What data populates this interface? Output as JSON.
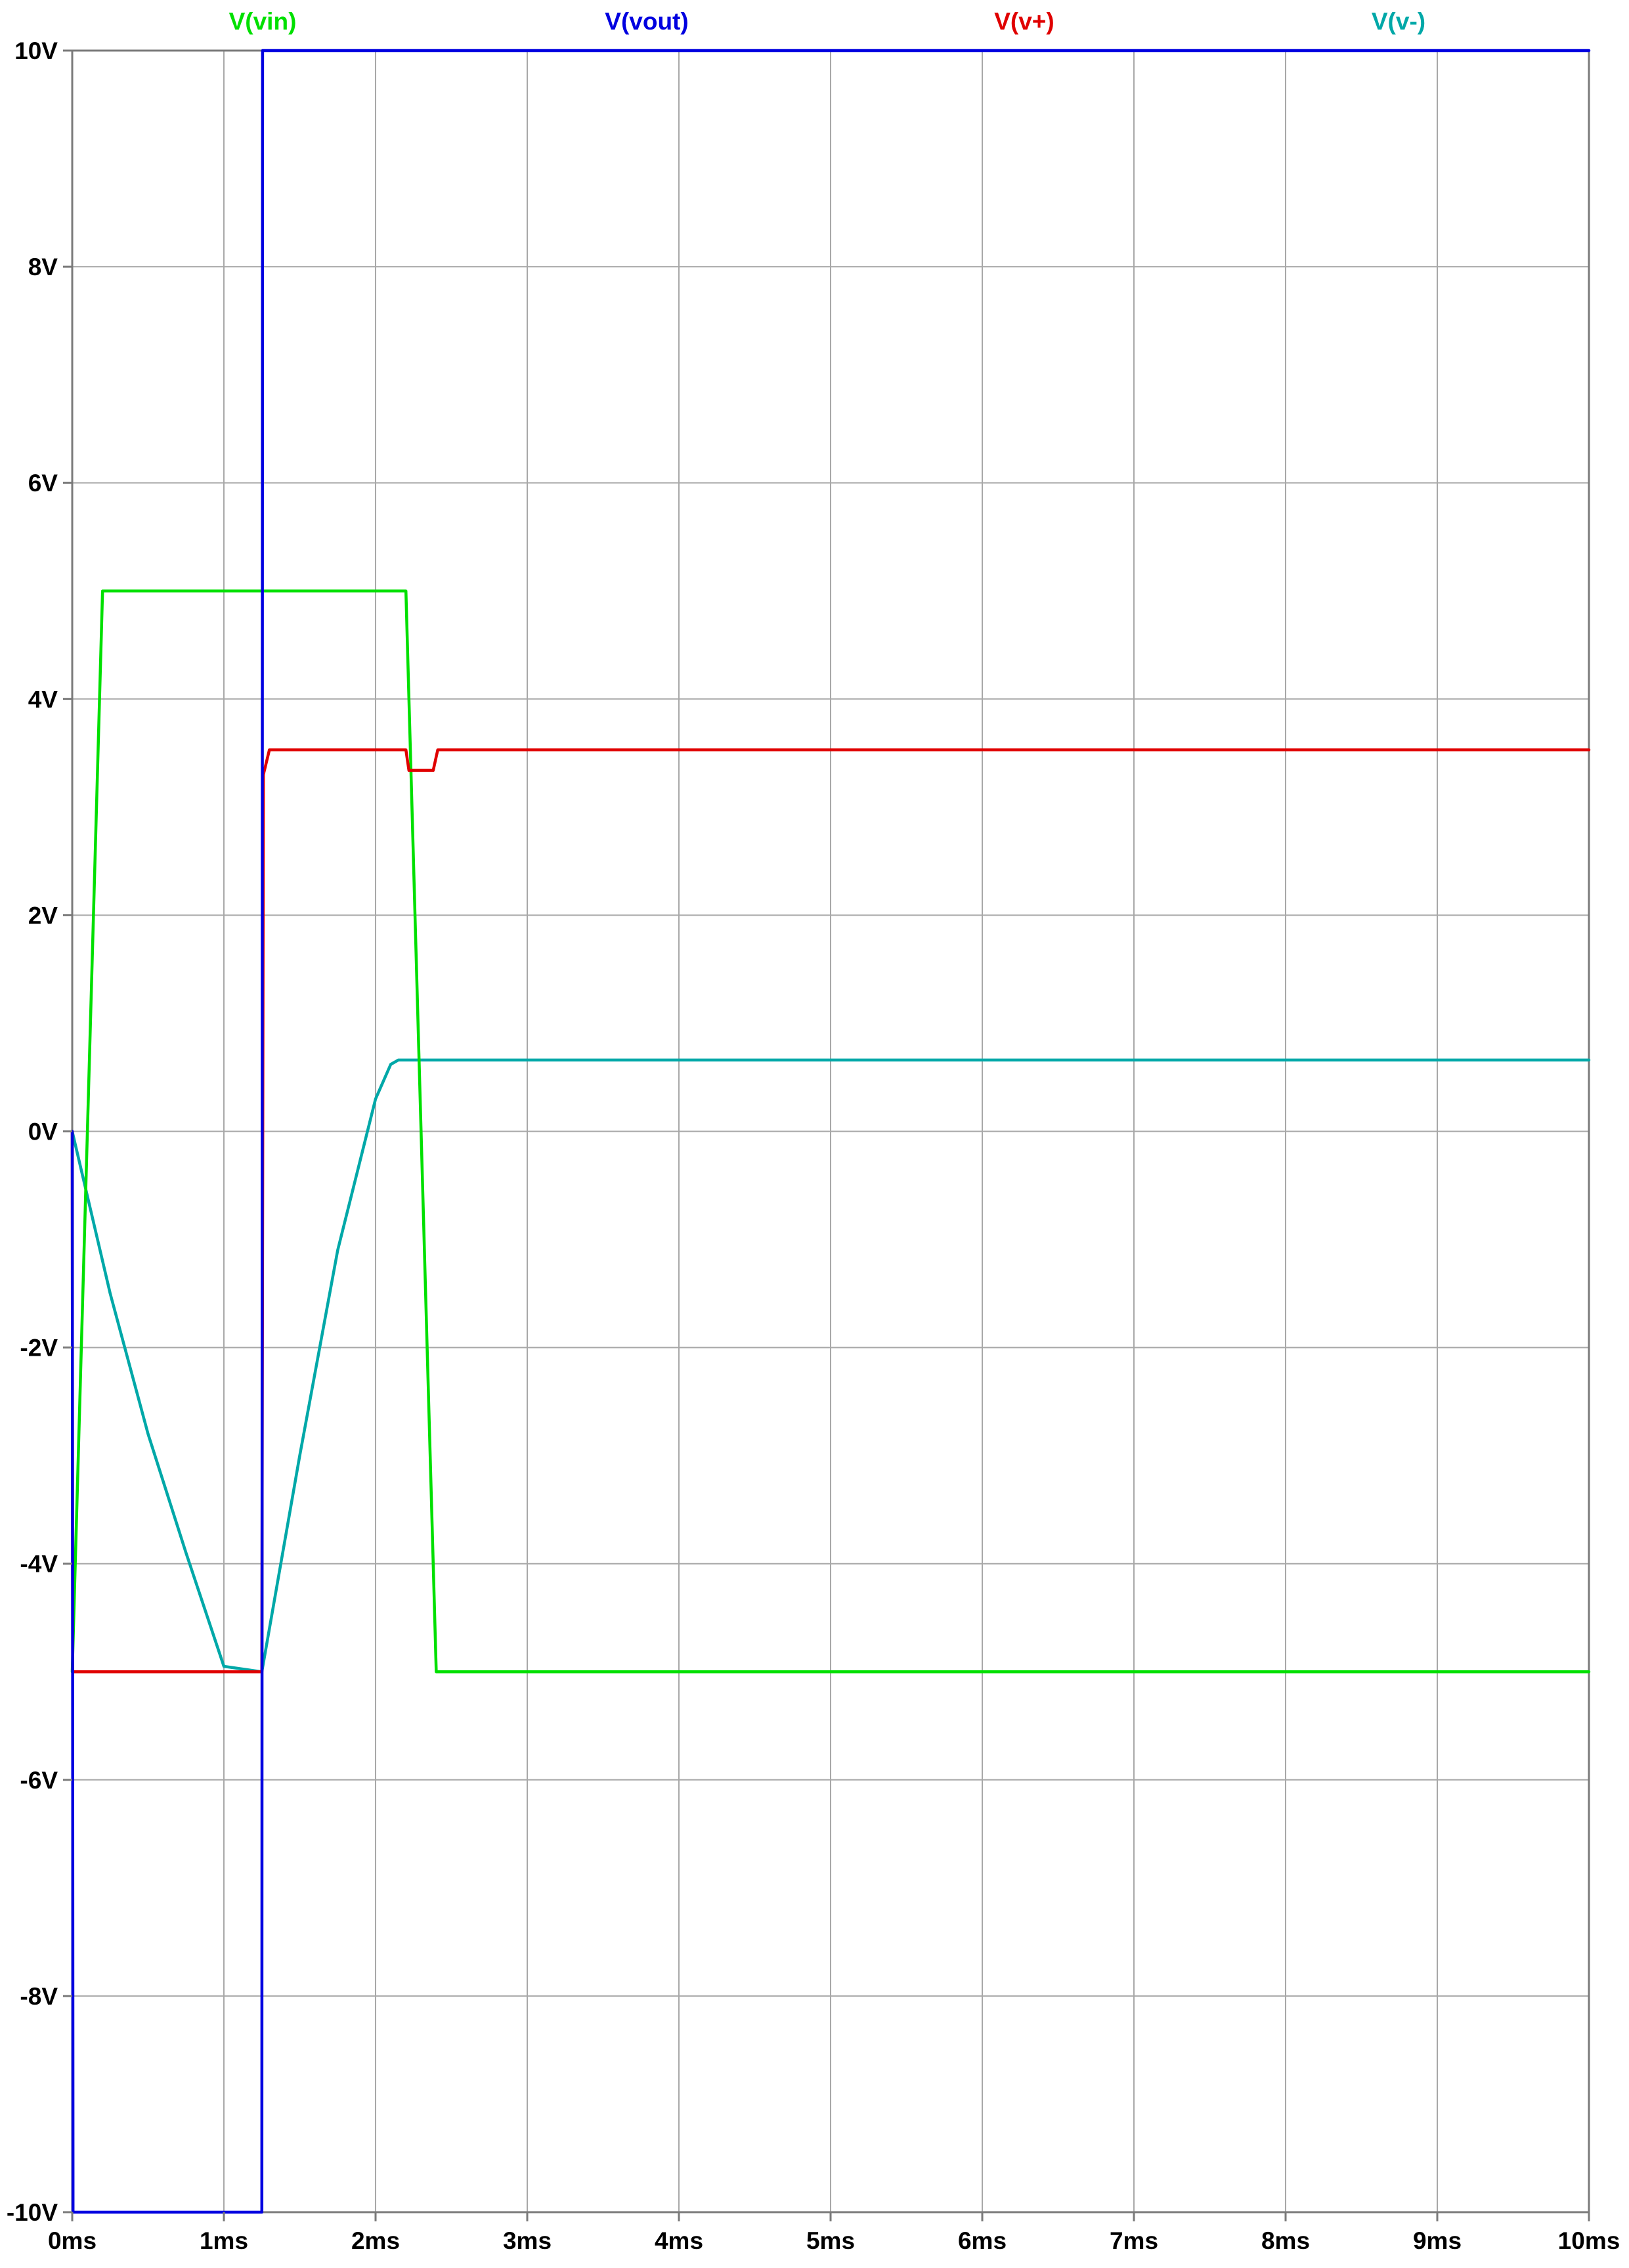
{
  "chart_data": {
    "type": "line",
    "title": "",
    "xlabel": "",
    "ylabel": "",
    "xlim": [
      0,
      10
    ],
    "ylim": [
      -10,
      10
    ],
    "x_unit": "ms",
    "y_unit": "V",
    "grid": true,
    "legend_position": "top",
    "x_ticks": [
      0,
      1,
      2,
      3,
      4,
      5,
      6,
      7,
      8,
      9,
      10
    ],
    "x_tick_labels": [
      "0ms",
      "1ms",
      "2ms",
      "3ms",
      "4ms",
      "5ms",
      "6ms",
      "7ms",
      "8ms",
      "9ms",
      "10ms"
    ],
    "y_ticks": [
      10,
      8,
      6,
      4,
      2,
      0,
      -2,
      -4,
      -6,
      -8,
      -10
    ],
    "y_tick_labels": [
      "10V",
      "8V",
      "6V",
      "4V",
      "2V",
      "0V",
      "-2V",
      "-4V",
      "-6V",
      "-8V",
      "-10V"
    ],
    "series": [
      {
        "name": "V(vin)",
        "color": "#00e000",
        "x": [
          0,
          0.2,
          2.2,
          2.4,
          10
        ],
        "y": [
          -5,
          5,
          5,
          -5,
          -5
        ]
      },
      {
        "name": "V(vout)",
        "color": "#0000e0",
        "x": [
          0,
          0.005,
          1.25,
          1.255,
          10
        ],
        "y": [
          0,
          -10,
          -10,
          10,
          10
        ]
      },
      {
        "name": "V(v+)",
        "color": "#e00000",
        "x": [
          0,
          0.003,
          1.25,
          1.26,
          1.3,
          2.2,
          2.22,
          2.38,
          2.41,
          10
        ],
        "y": [
          0,
          -5,
          -5,
          3.3,
          3.53,
          3.53,
          3.34,
          3.34,
          3.53,
          3.53
        ]
      },
      {
        "name": "V(v-)",
        "color": "#00a8a8",
        "x": [
          0,
          0.25,
          0.5,
          0.75,
          1.0,
          1.25,
          1.5,
          1.75,
          2.0,
          2.1,
          2.15,
          10
        ],
        "y": [
          0,
          -1.5,
          -2.8,
          -3.9,
          -4.95,
          -5.0,
          -3.0,
          -1.1,
          0.3,
          0.62,
          0.66,
          0.66
        ]
      }
    ]
  }
}
